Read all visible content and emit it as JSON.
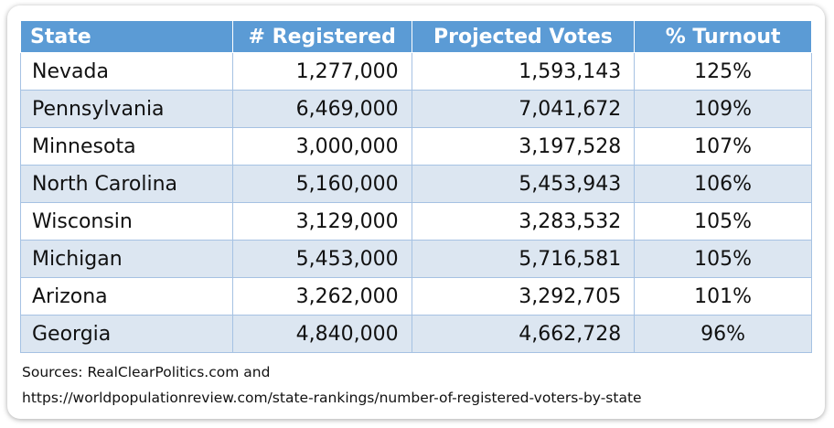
{
  "table": {
    "header": [
      "State",
      "# Registered",
      "Projected Votes",
      "% Turnout"
    ],
    "rows": [
      [
        "Nevada",
        "1,277,000",
        "1,593,143",
        "125%"
      ],
      [
        "Pennsylvania",
        "6,469,000",
        "7,041,672",
        "109%"
      ],
      [
        "Minnesota",
        "3,000,000",
        "3,197,528",
        "107%"
      ],
      [
        "North Carolina",
        "5,160,000",
        "5,453,943",
        "106%"
      ],
      [
        "Wisconsin",
        "3,129,000",
        "3,283,532",
        "105%"
      ],
      [
        "Michigan",
        "5,453,000",
        "5,716,581",
        "105%"
      ],
      [
        "Arizona",
        "3,262,000",
        "3,292,705",
        "101%"
      ],
      [
        "Georgia",
        "4,840,000",
        "4,662,728",
        "96%"
      ]
    ]
  },
  "sources": [
    "Sources: RealClearPolitics.com and",
    "https://worldpopulationreview.com/state-rankings/number-of-registered-voters-by-state"
  ]
}
